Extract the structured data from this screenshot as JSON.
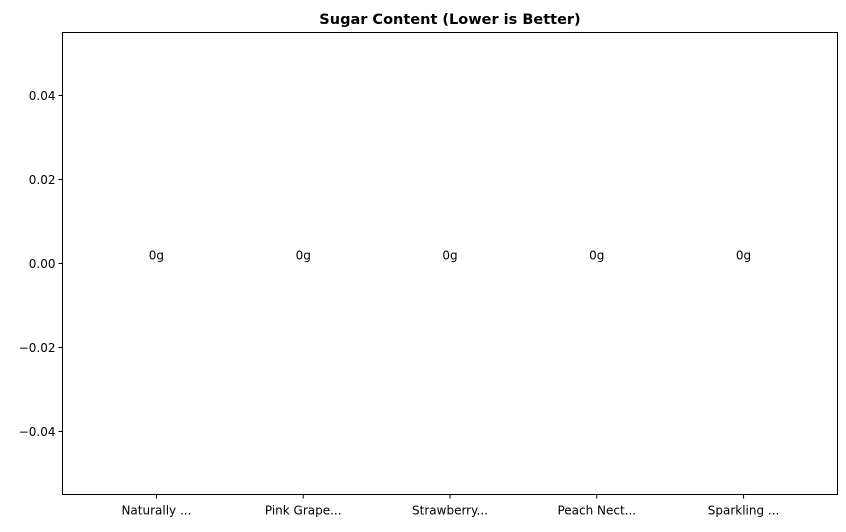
{
  "chart_data": {
    "type": "bar",
    "title": "Sugar Content (Lower is Better)",
    "xlabel": "",
    "ylabel": "",
    "categories": [
      "Naturally ...",
      "Pink Grape...",
      "Strawberry...",
      "Peach Nect...",
      "Sparkling ..."
    ],
    "values": [
      0,
      0,
      0,
      0,
      0
    ],
    "data_labels": [
      "0g",
      "0g",
      "0g",
      "0g",
      "0g"
    ],
    "ylim": [
      -0.055,
      0.055
    ],
    "xlim": [
      -0.64,
      4.64
    ],
    "yticks": [
      -0.04,
      -0.02,
      0.0,
      0.02,
      0.04
    ],
    "ytick_labels": [
      "−0.04",
      "−0.02",
      "0.00",
      "0.02",
      "0.04"
    ],
    "grid": false,
    "legend": "none"
  }
}
